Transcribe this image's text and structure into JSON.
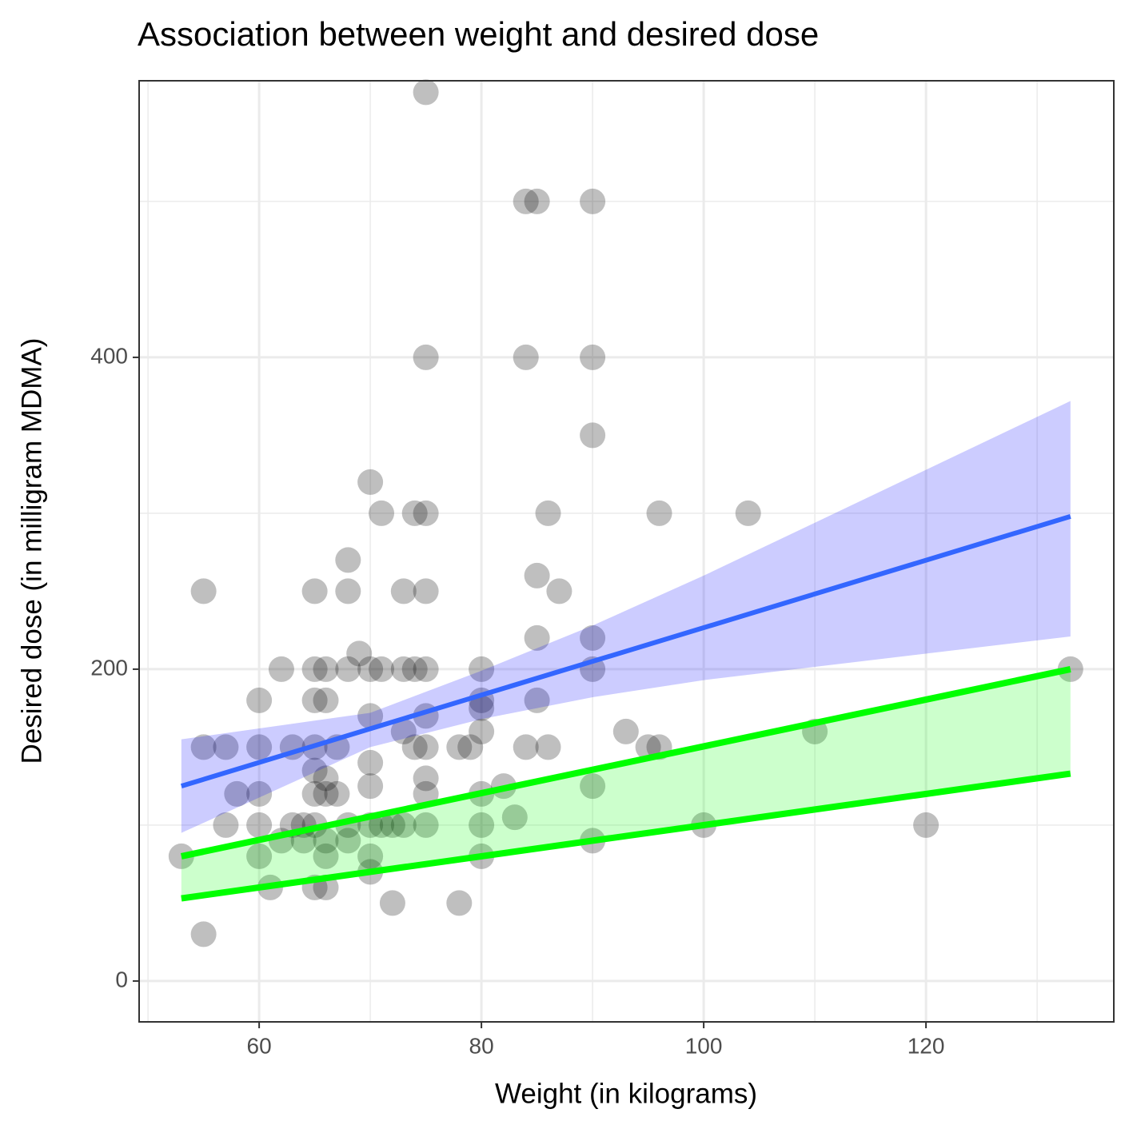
{
  "chart_data": {
    "type": "scatter",
    "title": "Association between weight and desired dose",
    "x_label": "Weight (in kilograms)",
    "y_label": "Desired dose (in milligram MDMA)",
    "xlim": [
      49.2,
      136.9
    ],
    "ylim": [
      -26.2,
      577.4
    ],
    "xticks": [
      60,
      80,
      100,
      120
    ],
    "yticks": [
      0,
      200,
      400
    ],
    "xminor": [
      50,
      70,
      90,
      110,
      130
    ],
    "yminor": [
      100,
      300,
      500
    ],
    "grid": true,
    "points": {
      "color": "#000000",
      "x": [
        75,
        84,
        85,
        90,
        75,
        84,
        90,
        90,
        70,
        71,
        74,
        75,
        86,
        96,
        104,
        68,
        55,
        65,
        68,
        73,
        75,
        87,
        85,
        85,
        90,
        69,
        62,
        65,
        66,
        68,
        70,
        71,
        73,
        74,
        75,
        80,
        90,
        133,
        60,
        65,
        66,
        80,
        85,
        70,
        75,
        80,
        73,
        80,
        93,
        110,
        55,
        57,
        60,
        63,
        65,
        67,
        74,
        75,
        78,
        79,
        84,
        86,
        95,
        96,
        70,
        65,
        66,
        75,
        82,
        70,
        90,
        58,
        60,
        65,
        66,
        67,
        75,
        80,
        83,
        57,
        60,
        63,
        64,
        65,
        68,
        70,
        71,
        72,
        73,
        75,
        80,
        100,
        120,
        62,
        64,
        66,
        68,
        90,
        53,
        60,
        66,
        70,
        80,
        70,
        61,
        65,
        66,
        72,
        78,
        55
      ],
      "y": [
        570,
        500,
        500,
        500,
        400,
        400,
        400,
        350,
        320,
        300,
        300,
        300,
        300,
        300,
        300,
        270,
        250,
        250,
        250,
        250,
        250,
        250,
        260,
        220,
        220,
        210,
        200,
        200,
        200,
        200,
        200,
        200,
        200,
        200,
        200,
        200,
        200,
        200,
        180,
        180,
        180,
        180,
        180,
        170,
        170,
        175,
        160,
        160,
        160,
        160,
        150,
        150,
        150,
        150,
        150,
        150,
        150,
        150,
        150,
        150,
        150,
        150,
        150,
        150,
        140,
        135,
        130,
        130,
        125,
        125,
        125,
        120,
        120,
        120,
        120,
        120,
        120,
        120,
        105,
        100,
        100,
        100,
        100,
        100,
        100,
        100,
        100,
        100,
        100,
        100,
        100,
        100,
        100,
        90,
        90,
        90,
        90,
        90,
        80,
        80,
        80,
        80,
        80,
        70,
        60,
        60,
        60,
        50,
        50,
        30
      ]
    },
    "fit": {
      "color": "#3366ff",
      "band_color": "#0000ff",
      "x": [
        53,
        70,
        80,
        90,
        100,
        133
      ],
      "y": [
        125,
        161.8,
        183.4,
        205,
        226.6,
        298
      ],
      "lower": [
        95,
        150,
        168,
        182,
        193,
        221
      ],
      "upper": [
        155,
        172,
        199,
        228,
        260,
        372
      ]
    },
    "bounds": {
      "color": "#00ff00",
      "x": [
        53,
        133
      ],
      "lower": [
        53,
        133
      ],
      "upper": [
        80,
        200
      ]
    }
  }
}
